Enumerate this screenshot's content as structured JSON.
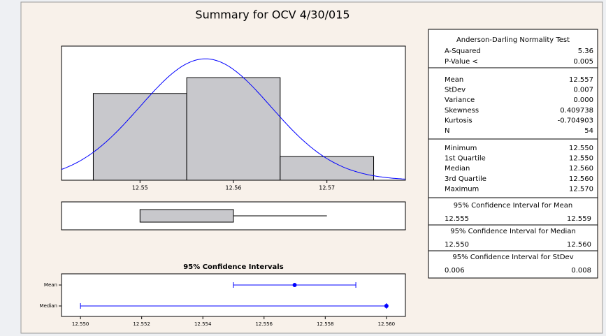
{
  "title": "Summary for OCV 4/30/015",
  "chart_data": [
    {
      "type": "histogram",
      "bins": [
        12.545,
        12.555,
        12.565,
        12.575
      ],
      "values": [
        22,
        26,
        6
      ],
      "color": "#c8c8cc",
      "xlim": [
        12.5416,
        12.5784
      ],
      "xticks": [
        12.55,
        12.56,
        12.57
      ],
      "ylim": [
        0,
        34
      ],
      "fit": {
        "mean": 12.557,
        "stdev": 0.007,
        "color": "#0000ff"
      }
    },
    {
      "type": "boxplot",
      "min": 12.55,
      "q1": 12.55,
      "median": 12.56,
      "q3": 12.56,
      "max": 12.57,
      "color": "#c8c8cc",
      "xlim": [
        12.5416,
        12.5784
      ]
    },
    {
      "type": "interval",
      "title": "95% Confidence Intervals",
      "categories": [
        "Mean",
        "Median"
      ],
      "values": [
        12.557,
        12.56
      ],
      "lower": [
        12.555,
        12.55
      ],
      "upper": [
        12.559,
        12.56
      ],
      "color": "#0000ff",
      "xlim": [
        12.54938,
        12.56062
      ],
      "xticks": [
        {
          "value": 12.55,
          "label": "12.550"
        },
        {
          "value": 12.552,
          "label": "12.552"
        },
        {
          "value": 12.554,
          "label": "12.554"
        },
        {
          "value": 12.556,
          "label": "12.556"
        },
        {
          "value": 12.558,
          "label": "12.558"
        },
        {
          "value": 12.56,
          "label": "12.560"
        }
      ]
    }
  ],
  "stats": {
    "normality": {
      "title": "Anderson-Darling Normality Test",
      "rows": [
        [
          "A-Squared",
          "5.36"
        ],
        [
          "P-Value <",
          "0.005"
        ]
      ]
    },
    "moments": [
      [
        "Mean",
        "12.557"
      ],
      [
        "StDev",
        "0.007"
      ],
      [
        "Variance",
        "0.000"
      ],
      [
        "Skewness",
        "0.409738"
      ],
      [
        "Kurtosis",
        "-0.704903"
      ],
      [
        "N",
        "54"
      ]
    ],
    "quantiles": [
      [
        "Minimum",
        "12.550"
      ],
      [
        "1st Quartile",
        "12.550"
      ],
      [
        "Median",
        "12.560"
      ],
      [
        "3rd Quartile",
        "12.560"
      ],
      [
        "Maximum",
        "12.570"
      ]
    ],
    "intervals": [
      {
        "title": "95% Confidence Interval for Mean",
        "values": [
          "12.555",
          "12.559"
        ]
      },
      {
        "title": "95% Confidence Interval for Median",
        "values": [
          "12.550",
          "12.560"
        ]
      },
      {
        "title": "95% Confidence Interval for StDev",
        "values": [
          "0.006",
          "0.008"
        ]
      }
    ]
  }
}
